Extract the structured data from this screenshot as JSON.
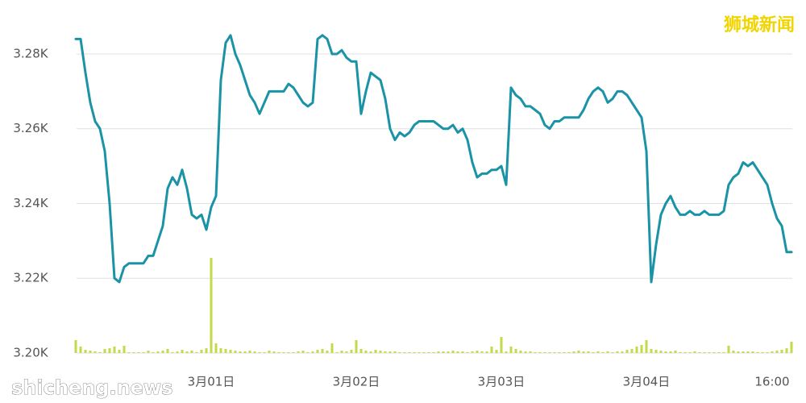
{
  "chart_data": {
    "type": "line",
    "color": "#1b93a6",
    "grid": true,
    "xlim": [
      0,
      151
    ],
    "ylim": [
      3200,
      3290
    ],
    "yticks": [
      {
        "value": 3200,
        "label": "3.20K"
      },
      {
        "value": 3220,
        "label": "3.22K"
      },
      {
        "value": 3240,
        "label": "3.24K"
      },
      {
        "value": 3260,
        "label": "3.26K"
      },
      {
        "value": 3280,
        "label": "3.28K"
      }
    ],
    "xticks": [
      {
        "value": 30,
        "label": "3月01日"
      },
      {
        "value": 60,
        "label": "3月02日"
      },
      {
        "value": 90,
        "label": "3月03日"
      },
      {
        "value": 120,
        "label": "3月04日"
      },
      {
        "value": 146,
        "label": "16:00"
      }
    ],
    "x": [
      2,
      3,
      4,
      5,
      6,
      7,
      8,
      9,
      10,
      11,
      12,
      13,
      14,
      15,
      16,
      17,
      18,
      19,
      20,
      21,
      22,
      23,
      24,
      25,
      26,
      27,
      28,
      29,
      30,
      31,
      32,
      33,
      34,
      35,
      36,
      37,
      38,
      39,
      40,
      41,
      42,
      43,
      44,
      45,
      46,
      47,
      48,
      49,
      50,
      51,
      52,
      53,
      54,
      55,
      56,
      57,
      58,
      59,
      60,
      61,
      62,
      63,
      64,
      65,
      66,
      67,
      68,
      69,
      70,
      71,
      72,
      73,
      74,
      75,
      76,
      77,
      78,
      79,
      80,
      81,
      82,
      83,
      84,
      85,
      86,
      87,
      88,
      89,
      90,
      91,
      92,
      93,
      94,
      95,
      96,
      97,
      98,
      99,
      100,
      101,
      102,
      103,
      104,
      105,
      106,
      107,
      108,
      109,
      110,
      111,
      112,
      113,
      114,
      115,
      116,
      117,
      118,
      119,
      120,
      121,
      122,
      123,
      124,
      125,
      126,
      127,
      128,
      129,
      130,
      131,
      132,
      133,
      134,
      135,
      136,
      137,
      138,
      139,
      140,
      141,
      142,
      143,
      144,
      145,
      146,
      147,
      148,
      149,
      150
    ],
    "values": [
      3284,
      3284,
      3275,
      3267,
      3262,
      3260,
      3254,
      3240,
      3220,
      3219,
      3223,
      3224,
      3224,
      3224,
      3224,
      3226,
      3226,
      3230,
      3234,
      3244,
      3247,
      3245,
      3249,
      3244,
      3237,
      3236,
      3237,
      3233,
      3239,
      3242,
      3273,
      3283,
      3285,
      3280,
      3277,
      3273,
      3269,
      3267,
      3264,
      3267,
      3270,
      3270,
      3270,
      3270,
      3272,
      3271,
      3269,
      3267,
      3266,
      3267,
      3284,
      3285,
      3284,
      3280,
      3280,
      3281,
      3279,
      3278,
      3278,
      3264,
      3270,
      3275,
      3274,
      3273,
      3268,
      3260,
      3257,
      3259,
      3258,
      3259,
      3261,
      3262,
      3262,
      3262,
      3262,
      3261,
      3260,
      3260,
      3261,
      3259,
      3260,
      3257,
      3251,
      3247,
      3248,
      3248,
      3249,
      3249,
      3250,
      3245,
      3271,
      3269,
      3268,
      3266,
      3266,
      3265,
      3264,
      3261,
      3260,
      3262,
      3262,
      3263,
      3263,
      3263,
      3263,
      3265,
      3268,
      3270,
      3271,
      3270,
      3267,
      3268,
      3270,
      3270,
      3269,
      3267,
      3265,
      3263,
      3254,
      3219,
      3229,
      3237,
      3240,
      3242,
      3239,
      3237,
      3237,
      3238,
      3237,
      3237,
      3238,
      3237,
      3237,
      3237,
      3238,
      3245,
      3247,
      3248,
      3251,
      3250,
      3251,
      3249,
      3247,
      3245,
      3240,
      3236,
      3234,
      3227,
      3227
    ],
    "volume": {
      "color": "#c5d94b",
      "values": [
        16,
        8,
        4,
        3,
        2,
        1,
        5,
        6,
        8,
        4,
        9,
        1,
        1,
        1,
        1,
        3,
        1,
        2,
        3,
        5,
        1,
        2,
        4,
        2,
        3,
        1,
        4,
        6,
        118,
        12,
        6,
        5,
        4,
        3,
        2,
        2,
        3,
        2,
        1,
        1,
        3,
        2,
        1,
        1,
        1,
        1,
        2,
        3,
        1,
        2,
        4,
        5,
        3,
        12,
        1,
        3,
        2,
        4,
        16,
        5,
        3,
        2,
        4,
        3,
        2,
        2,
        2,
        1,
        1,
        1,
        1,
        1,
        1,
        1,
        1,
        2,
        2,
        2,
        3,
        2,
        2,
        1,
        2,
        3,
        2,
        2,
        8,
        4,
        20,
        2,
        8,
        5,
        3,
        2,
        2,
        1,
        1,
        1,
        1,
        1,
        1,
        1,
        1,
        2,
        3,
        2,
        2,
        1,
        2,
        1,
        2,
        1,
        2,
        2,
        4,
        5,
        8,
        10,
        16,
        5,
        4,
        3,
        2,
        2,
        3,
        1,
        1,
        1,
        2,
        1,
        1,
        1,
        1,
        1,
        1,
        9,
        3,
        2,
        2,
        2,
        2,
        1,
        1,
        1,
        2,
        3,
        4,
        6,
        14
      ]
    }
  },
  "watermarks": {
    "top": "狮城新闻",
    "bottom": "shicheng.news"
  }
}
